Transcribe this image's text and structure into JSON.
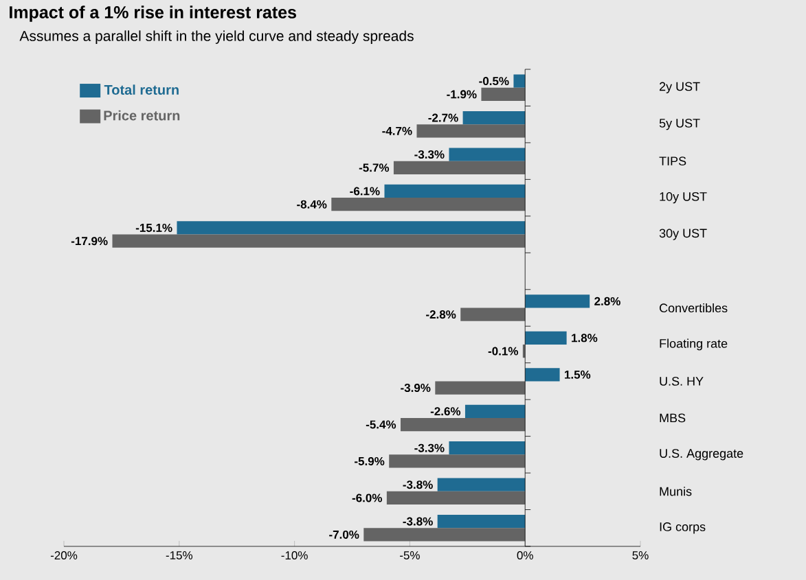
{
  "chart_data": {
    "type": "bar",
    "orientation": "horizontal",
    "title": "Impact of a 1% rise in interest rates",
    "subtitle": "Assumes a parallel shift in the yield curve and steady spreads",
    "categories": [
      "2y UST",
      "5y UST",
      "TIPS",
      "10y UST",
      "30y UST",
      null,
      "Convertibles",
      "Floating rate",
      "U.S. HY",
      "MBS",
      "U.S. Aggregate",
      "Munis",
      "IG corps"
    ],
    "series": [
      {
        "name": "Total return",
        "color": "#1f6b92",
        "values": [
          -0.5,
          -2.7,
          -3.3,
          -6.1,
          -15.1,
          null,
          2.8,
          1.8,
          1.5,
          -2.6,
          -3.3,
          -3.8,
          -3.8
        ],
        "value_labels": [
          "-0.5%",
          "-2.7%",
          "-3.3%",
          "-6.1%",
          "-15.1%",
          null,
          "2.8%",
          "1.8%",
          "1.5%",
          "-2.6%",
          "-3.3%",
          "-3.8%",
          "-3.8%"
        ]
      },
      {
        "name": "Price return",
        "color": "#646464",
        "values": [
          -1.9,
          -4.7,
          -5.7,
          -8.4,
          -17.9,
          null,
          -2.8,
          -0.1,
          -3.9,
          -5.4,
          -5.9,
          -6.0,
          -7.0
        ],
        "value_labels": [
          "-1.9%",
          "-4.7%",
          "-5.7%",
          "-8.4%",
          "-17.9%",
          null,
          "-2.8%",
          "-0.1%",
          "-3.9%",
          "-5.4%",
          "-5.9%",
          "-6.0%",
          "-7.0%"
        ]
      }
    ],
    "xlim": [
      -20,
      5
    ],
    "xticks": [
      {
        "value": -20,
        "label": "-20%"
      },
      {
        "value": -15,
        "label": "-15%"
      },
      {
        "value": -10,
        "label": "-10%"
      },
      {
        "value": -5,
        "label": "-5%"
      },
      {
        "value": 0,
        "label": "0%"
      },
      {
        "value": 5,
        "label": "5%"
      }
    ],
    "ref_lines": [
      {
        "axis": "x",
        "value": 0,
        "color": "#000000"
      }
    ],
    "legend": "top left",
    "grid": false
  }
}
